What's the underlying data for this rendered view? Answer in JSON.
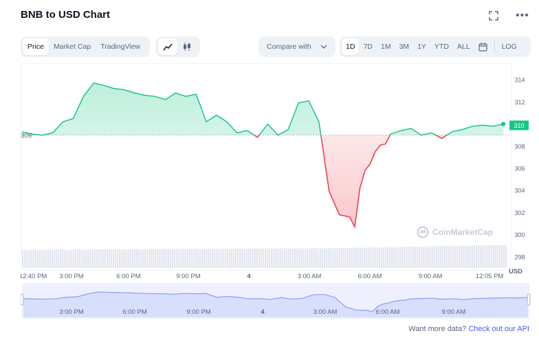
{
  "page": {
    "title": "BNB to USD Chart",
    "footer_text": "Want more data?",
    "footer_link": "Check out our API",
    "watermark": "CoinMarketCap"
  },
  "toolbar": {
    "type_tabs": [
      "Price",
      "Market Cap",
      "TradingView"
    ],
    "active_type": "Price",
    "compare_label": "Compare with",
    "ranges": [
      "1D",
      "7D",
      "1M",
      "3M",
      "1Y",
      "YTD",
      "ALL"
    ],
    "active_range": "1D",
    "log_label": "LOG",
    "icons": [
      "line-chart-icon",
      "candlestick-icon",
      "chevron-down-icon",
      "calendar-icon",
      "expand-icon",
      "more-icon"
    ]
  },
  "colors": {
    "up": "#16c784",
    "down": "#ea3943",
    "accent": "#3861fb",
    "navigator": "#8fa2f5"
  },
  "chart_data": {
    "type": "line",
    "base_value": 309,
    "base_label": "309",
    "current_value": 310,
    "current_label": "310",
    "ylim": [
      297,
      315
    ],
    "y_ticks": [
      "314",
      "312",
      "310",
      "308",
      "306",
      "304",
      "302",
      "300",
      "298"
    ],
    "y_axis_unit": "USD",
    "x_labels": [
      "12:40 PM",
      "3:00 PM",
      "6:00 PM",
      "9:00 PM",
      "4",
      "3:00 AM",
      "6:00 AM",
      "9:00 AM",
      "12:05 PM"
    ],
    "navigator_labels": [
      "3:00 PM",
      "6:00 PM",
      "9:00 PM",
      "4",
      "3:00 AM",
      "6:00 AM",
      "9:00 AM"
    ],
    "x_hours": [
      0,
      0.5,
      1,
      1.5,
      2,
      2.5,
      3,
      3.5,
      4,
      4.5,
      5,
      5.5,
      6,
      6.5,
      7,
      7.5,
      8,
      8.5,
      9,
      9.5,
      10,
      10.5,
      11,
      11.5,
      12,
      12.5,
      13,
      13.5,
      14,
      14.5,
      15,
      15.5,
      16,
      16.25,
      16.5,
      16.75,
      17,
      17.25,
      17.5,
      17.75,
      18,
      18.5,
      19,
      19.5,
      20,
      20.5,
      21,
      21.5,
      22,
      22.5,
      23,
      23.5
    ],
    "prices": [
      309.3,
      309.1,
      309.0,
      309.2,
      310.2,
      310.5,
      312.5,
      313.7,
      313.5,
      313.2,
      313.1,
      312.8,
      312.6,
      312.5,
      312.2,
      312.8,
      312.5,
      312.7,
      310.2,
      310.8,
      310.2,
      309.2,
      309.4,
      308.8,
      310.0,
      309.0,
      309.5,
      311.9,
      312.1,
      310.2,
      303.9,
      301.8,
      301.6,
      300.7,
      304.2,
      305.8,
      306.4,
      307.5,
      308.1,
      308.2,
      309.1,
      309.4,
      309.6,
      309.0,
      309.2,
      308.7,
      309.3,
      309.5,
      309.8,
      309.9,
      309.8,
      310.0
    ],
    "volume_note": ""
  }
}
